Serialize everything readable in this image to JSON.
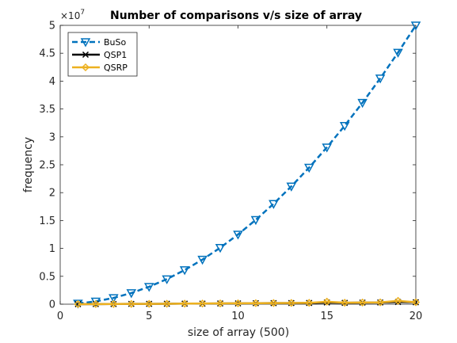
{
  "chart_data": {
    "type": "line",
    "title": "Number of comparisons v/s size of array",
    "xlabel": "size of array (500)",
    "ylabel": "frequency",
    "xlim": [
      0,
      20
    ],
    "ylim": [
      0,
      5
    ],
    "y_multiplier": "×10",
    "y_exponent": "7",
    "xticks": [
      "0",
      "5",
      "10",
      "15",
      "20"
    ],
    "yticks": [
      "0",
      "0.5",
      "1",
      "1.5",
      "2",
      "2.5",
      "3",
      "3.5",
      "4",
      "4.5",
      "5"
    ],
    "grid": false,
    "legend_position": "top-left",
    "x": [
      1,
      2,
      3,
      4,
      5,
      6,
      7,
      8,
      9,
      10,
      11,
      12,
      13,
      14,
      15,
      16,
      17,
      18,
      19,
      20
    ],
    "series": [
      {
        "name": "BuSo",
        "color": "#0072BD",
        "line_style": "dashed",
        "marker": "triangle-down",
        "values": [
          0.0125,
          0.05,
          0.1125,
          0.2,
          0.3125,
          0.45,
          0.6125,
          0.8,
          1.0125,
          1.25,
          1.5125,
          1.8,
          2.1125,
          2.45,
          2.8125,
          3.2,
          3.6125,
          4.05,
          4.5125,
          5.0
        ]
      },
      {
        "name": "QSP1",
        "color": "#000000",
        "line_style": "solid",
        "marker": "x",
        "values": [
          0.0008,
          0.002,
          0.003,
          0.005,
          0.006,
          0.008,
          0.01,
          0.011,
          0.013,
          0.014,
          0.018,
          0.019,
          0.02,
          0.022,
          0.03,
          0.024,
          0.028,
          0.03,
          0.04,
          0.035
        ]
      },
      {
        "name": "QSRP",
        "color": "#EDB120",
        "line_style": "solid",
        "marker": "diamond",
        "values": [
          0.0008,
          0.002,
          0.003,
          0.005,
          0.006,
          0.008,
          0.01,
          0.012,
          0.014,
          0.016,
          0.018,
          0.02,
          0.022,
          0.024,
          0.045,
          0.026,
          0.03,
          0.032,
          0.06,
          0.035
        ]
      }
    ]
  }
}
